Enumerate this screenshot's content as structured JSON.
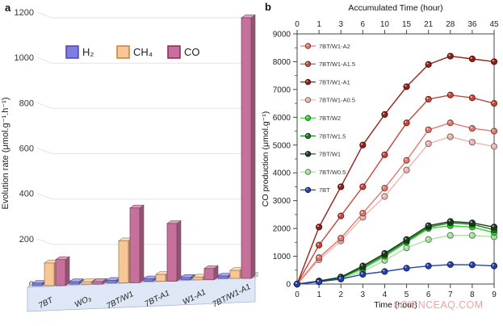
{
  "figure": {
    "watermark": "SCIENCEAQ.COM"
  },
  "panel_a": {
    "label": "a",
    "ylabel": "Evolution rate (μmol.g⁻¹.h⁻¹)",
    "legend": [
      {
        "label": "H₂",
        "fill": "#7e7ee2",
        "stroke": "#4747ad"
      },
      {
        "label": "CH₄",
        "fill": "#f8c794",
        "stroke": "#c08040"
      },
      {
        "label": "CO",
        "fill": "#c7709b",
        "stroke": "#8b2655"
      }
    ],
    "floor": {
      "top": "#c9d6ea",
      "front": "#dde7f6",
      "stroke": "#a8b6cd"
    }
  },
  "panel_b": {
    "label": "b"
  },
  "chart_data": [
    {
      "type": "bar",
      "panel": "a",
      "style": "3d",
      "ylabel": "Evolution rate (μmol.g⁻¹.h⁻¹)",
      "ylim": [
        0,
        1200
      ],
      "yticks": [
        0,
        200,
        400,
        600,
        800,
        1000,
        1200
      ],
      "categories": [
        "7BT",
        "WO₃",
        "7BT/W1",
        "7BT-A1",
        "W1-A1",
        "7BT/W1-A1"
      ],
      "series": [
        {
          "name": "H₂",
          "color": "#7e7ee2",
          "values": [
            8,
            7,
            8,
            8,
            7,
            8
          ]
        },
        {
          "name": "CH₄",
          "color": "#f8c794",
          "values": [
            100,
            10,
            185,
            30,
            12,
            35
          ]
        },
        {
          "name": "CO",
          "color": "#c7709b",
          "values": [
            115,
            12,
            330,
            255,
            50,
            1150
          ]
        }
      ]
    },
    {
      "type": "line",
      "panel": "b",
      "top_axis_label": "Accumulated Time (hour)",
      "top_axis_ticks": [
        "0",
        "1",
        "3",
        "6",
        "10",
        "15",
        "21",
        "28",
        "36",
        "45"
      ],
      "xlabel": "Time (hour)",
      "x": [
        0,
        1,
        2,
        3,
        4,
        5,
        6,
        7,
        8,
        9
      ],
      "ylabel": "CO production (μmol.g⁻¹)",
      "ylim": [
        0,
        9000
      ],
      "yticks": [
        0,
        1000,
        2000,
        3000,
        4000,
        5000,
        6000,
        7000,
        8000,
        9000
      ],
      "legend_position": "upper-left-inside",
      "series": [
        {
          "name": "7BT/W1-A2",
          "color": "#e2796f",
          "values": [
            0,
            950,
            1650,
            2550,
            3450,
            4450,
            5550,
            5800,
            5600,
            5500
          ]
        },
        {
          "name": "7BT/W1-A1.5",
          "color": "#c8463a",
          "values": [
            0,
            1400,
            2450,
            3500,
            4650,
            5800,
            6650,
            6800,
            6700,
            6500
          ]
        },
        {
          "name": "7BT/W1-A1",
          "color": "#962018",
          "values": [
            0,
            2050,
            3500,
            5000,
            6100,
            7100,
            7900,
            8200,
            8100,
            8000
          ]
        },
        {
          "name": "7BT/W1-A0.5",
          "color": "#edb6b0",
          "values": [
            0,
            870,
            1550,
            2400,
            3150,
            4100,
            5050,
            5300,
            5100,
            4950
          ]
        },
        {
          "name": "7BT/W2",
          "color": "#2fd32f",
          "values": [
            0,
            90,
            220,
            550,
            1000,
            1500,
            2000,
            2100,
            2050,
            1850
          ]
        },
        {
          "name": "7BT/W1.5",
          "color": "#1a7a1a",
          "values": [
            0,
            100,
            230,
            600,
            1050,
            1550,
            2050,
            2200,
            2150,
            1950
          ]
        },
        {
          "name": "7BT/W1",
          "color": "#1e3b22",
          "values": [
            0,
            110,
            250,
            650,
            1100,
            1600,
            2100,
            2250,
            2200,
            2050
          ]
        },
        {
          "name": "7BT/W0.5",
          "color": "#a6e39e",
          "values": [
            0,
            80,
            200,
            450,
            850,
            1300,
            1600,
            1750,
            1750,
            1700
          ]
        },
        {
          "name": "7BT",
          "color": "#2540b0",
          "values": [
            0,
            80,
            180,
            350,
            450,
            570,
            650,
            700,
            690,
            650
          ]
        }
      ]
    }
  ]
}
